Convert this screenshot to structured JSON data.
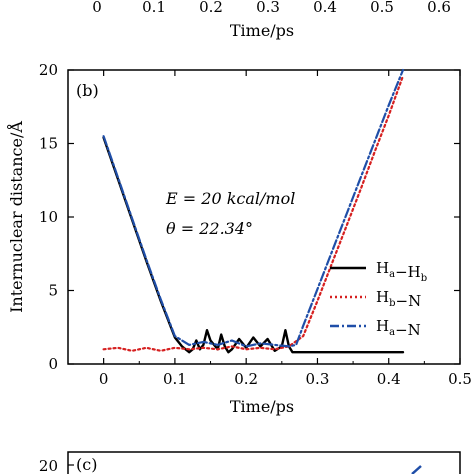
{
  "top_fragment": {
    "xticks": [
      "0",
      "0.1",
      "0.2",
      "0.3",
      "0.4",
      "0.5",
      "0.6"
    ],
    "xlabel": "Time/ps"
  },
  "chart_data": {
    "type": "line",
    "panel_label": "(b)",
    "xlabel": "Time/ps",
    "ylabel": "Internuclear distance/Å",
    "xlim": [
      -0.05,
      0.5
    ],
    "ylim": [
      0,
      20
    ],
    "xticks": [
      0,
      0.1,
      0.2,
      0.3,
      0.4,
      0.5
    ],
    "xtick_labels": [
      "0",
      "0.1",
      "0.2",
      "0.3",
      "0.4",
      "0.5"
    ],
    "yticks": [
      0,
      5,
      10,
      15,
      20
    ],
    "ytick_labels": [
      "0",
      "5",
      "10",
      "15",
      "20"
    ],
    "annotation": {
      "energy": "E = 20 kcal/mol",
      "angle": "θ = 22.34°"
    },
    "legend_position": "right",
    "series": [
      {
        "name": "Ha−Hb",
        "legend_main_1": "H",
        "legend_sub_1": "a",
        "legend_dash": "−",
        "legend_main_2": "H",
        "legend_sub_2": "b",
        "color": "#000000",
        "style": "solid",
        "x": [
          0,
          0.02,
          0.04,
          0.06,
          0.08,
          0.1,
          0.11,
          0.12,
          0.125,
          0.13,
          0.135,
          0.14,
          0.145,
          0.15,
          0.16,
          0.165,
          0.17,
          0.175,
          0.18,
          0.19,
          0.2,
          0.21,
          0.22,
          0.23,
          0.24,
          0.25,
          0.255,
          0.26,
          0.265,
          0.27,
          0.3,
          0.35,
          0.42
        ],
        "y": [
          15.4,
          12.6,
          9.8,
          7.0,
          4.3,
          1.8,
          1.2,
          0.8,
          1.0,
          1.6,
          1.0,
          1.3,
          2.3,
          1.6,
          1.0,
          2.0,
          1.2,
          0.8,
          1.0,
          1.7,
          1.1,
          1.8,
          1.2,
          1.7,
          0.9,
          1.2,
          2.3,
          1.2,
          0.8,
          0.8,
          0.8,
          0.8,
          0.8
        ]
      },
      {
        "name": "Hb−N",
        "legend_main_1": "H",
        "legend_sub_1": "b",
        "legend_dash": "−",
        "legend_main_2": "N",
        "legend_sub_2": "",
        "color": "#d62020",
        "style": "dotted",
        "x": [
          0,
          0.02,
          0.04,
          0.06,
          0.08,
          0.1,
          0.12,
          0.14,
          0.16,
          0.18,
          0.2,
          0.22,
          0.24,
          0.26,
          0.28,
          0.3,
          0.32,
          0.34,
          0.36,
          0.38,
          0.4,
          0.42
        ],
        "y": [
          1.0,
          1.1,
          0.9,
          1.1,
          0.9,
          1.1,
          1.0,
          1.1,
          1.0,
          1.2,
          1.0,
          1.1,
          1.0,
          1.2,
          1.9,
          4.3,
          6.8,
          9.3,
          11.8,
          14.4,
          16.9,
          19.6
        ]
      },
      {
        "name": "Ha−N",
        "legend_main_1": "H",
        "legend_sub_1": "a",
        "legend_dash": "−",
        "legend_main_2": "N",
        "legend_sub_2": "",
        "color": "#1f4ea8",
        "style": "dashdot",
        "x": [
          0,
          0.02,
          0.04,
          0.06,
          0.08,
          0.1,
          0.12,
          0.14,
          0.16,
          0.18,
          0.2,
          0.22,
          0.24,
          0.26,
          0.27,
          0.28,
          0.3,
          0.32,
          0.34,
          0.36,
          0.38,
          0.4,
          0.42
        ],
        "y": [
          15.5,
          12.7,
          9.9,
          7.1,
          4.4,
          1.9,
          1.3,
          1.5,
          1.3,
          1.6,
          1.2,
          1.4,
          1.3,
          1.2,
          1.3,
          2.6,
          5.1,
          7.6,
          10.1,
          12.6,
          15.1,
          17.6,
          20.0
        ]
      }
    ]
  },
  "bottom_fragment": {
    "panel_label": "(c)",
    "ytick": "20"
  }
}
